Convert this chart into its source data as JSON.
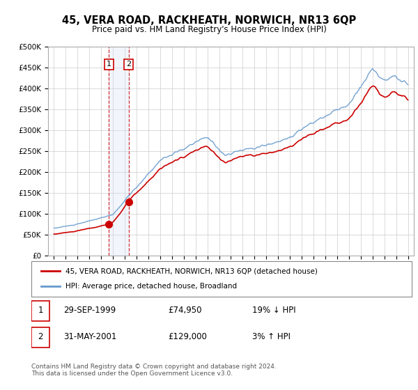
{
  "title": "45, VERA ROAD, RACKHEATH, NORWICH, NR13 6QP",
  "subtitle": "Price paid vs. HM Land Registry's House Price Index (HPI)",
  "property_label": "45, VERA ROAD, RACKHEATH, NORWICH, NR13 6QP (detached house)",
  "hpi_label": "HPI: Average price, detached house, Broadland",
  "sale1_date": "29-SEP-1999",
  "sale1_price": 74950,
  "sale1_hpi": "19% ↓ HPI",
  "sale2_date": "31-MAY-2001",
  "sale2_price": 129000,
  "sale2_hpi": "3% ↑ HPI",
  "footer": "Contains HM Land Registry data © Crown copyright and database right 2024.\nThis data is licensed under the Open Government Licence v3.0.",
  "property_color": "#cc0000",
  "hpi_color": "#6699cc",
  "shade_color": "#ccddf5",
  "ylim_min": 0,
  "ylim_max": 500000,
  "xlim_min": 1994.5,
  "xlim_max": 2025.5,
  "background_color": "#ffffff",
  "grid_color": "#cccccc"
}
